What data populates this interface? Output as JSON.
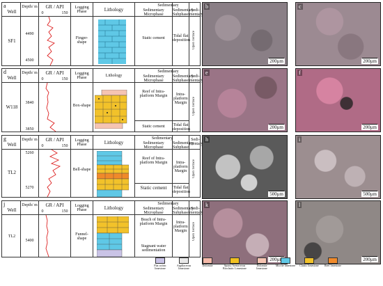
{
  "header": {
    "well": "Well",
    "depth": "Depth/ m",
    "gr": "GR / API",
    "gr_min": "0",
    "gr_max": "150",
    "logging_phase": "Logging Phase",
    "lithology": "Lithology",
    "sedimentary": "Sedimentary",
    "microphase": "Sedimentary Microphase",
    "subphase": "Sedimentary Subphase",
    "sedi_mentary": "Sedi-mentary"
  },
  "panels": [
    {
      "label": "a",
      "well": "SF1",
      "depths": [
        "4490",
        "4500"
      ],
      "logging_phase": "Finger-shape",
      "microphase": [
        "Static cement"
      ],
      "subphase": [
        "Tidal flat deposition"
      ],
      "facies": "Open Terrace"
    },
    {
      "label": "d",
      "well": "W118",
      "depths": [
        "3840",
        "3850"
      ],
      "logging_phase": "Box-shape",
      "microphase": [
        "Reef of Intra-platform Margin",
        "Static cement"
      ],
      "subphase": [
        "Intra-platform Margin",
        "Tidal flat deposition"
      ],
      "facies": "Open Terrace"
    },
    {
      "label": "g",
      "well": "TL2",
      "depths": [
        "5260",
        "5270"
      ],
      "logging_phase": "Bell-shape",
      "microphase": [
        "Reef of Intra-platform Margin",
        "Static cement"
      ],
      "subphase": [
        "Intra-platform Margin",
        "Tidal flat deposition"
      ],
      "facies": "Open Terrace"
    },
    {
      "label": "j",
      "well": "TL2",
      "depths": [
        "5400"
      ],
      "logging_phase": "Funnel-shape",
      "microphase": [
        "Beach of Intra-platform Margin",
        "Stagnant water sedimentation"
      ],
      "subphase": [
        "Intra-platform Margin"
      ],
      "facies": "Open Terrace"
    }
  ],
  "photos": [
    {
      "label": "b",
      "scale": "200μm",
      "tone": "#8a7f86"
    },
    {
      "label": "c",
      "scale": "200μm",
      "tone": "#9c8a92"
    },
    {
      "label": "e",
      "scale": "200μm",
      "tone": "#9a7486"
    },
    {
      "label": "f",
      "scale": "200μm",
      "tone": "#b06b86"
    },
    {
      "label": "h",
      "scale": "500μm",
      "tone": "#5a5a5a"
    },
    {
      "label": "i",
      "scale": "500μm",
      "tone": "#9c8e90"
    },
    {
      "label": "k",
      "scale": "200μm",
      "tone": "#8e6f7c"
    },
    {
      "label": "l",
      "scale": "200μm",
      "tone": "#8f8886"
    }
  ],
  "legend": [
    {
      "label": "Flat oolitic limestone",
      "color": "#c9c3e6"
    },
    {
      "label": "Argillaceous limestone",
      "color": "#e8e8e8"
    },
    {
      "label": "Dolomite",
      "color": "#f4b8a8"
    },
    {
      "label": "Sparry Arenaceous Bioclastic Limestone",
      "color": "#f0c020"
    },
    {
      "label": "Dolomite limestone",
      "color": "#f5c4b2"
    },
    {
      "label": "Micrite limestone",
      "color": "#5fc8e6"
    },
    {
      "label": "Clastic limestone",
      "color": "#f2c22a"
    },
    {
      "label": "Reef limestone",
      "color": "#f08a2a"
    }
  ]
}
